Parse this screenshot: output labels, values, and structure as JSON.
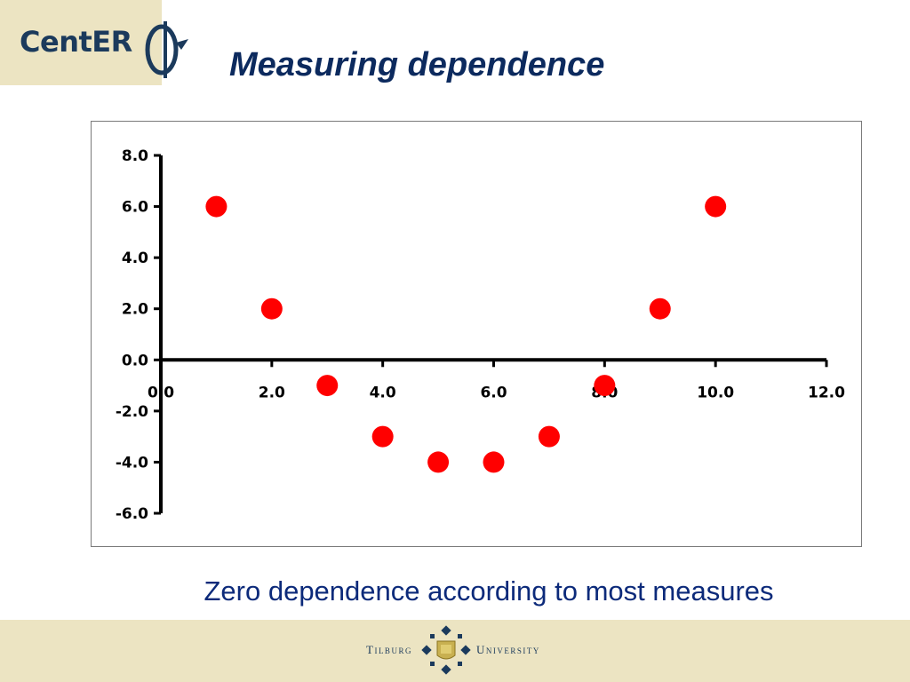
{
  "header": {
    "logo_text": "CentER",
    "title": "Measuring dependence"
  },
  "caption": "Zero dependence according to most measures",
  "footer": {
    "left": "Tilburg",
    "right": "University"
  },
  "colors": {
    "title": "#0c2a5e",
    "point": "#ff0000",
    "band": "#ece4c2"
  },
  "chart_data": {
    "type": "scatter",
    "title": "",
    "xlabel": "",
    "ylabel": "",
    "xlim": [
      0,
      12
    ],
    "ylim": [
      -6,
      8
    ],
    "x_ticks": [
      "0.0",
      "2.0",
      "4.0",
      "6.0",
      "8.0",
      "10.0",
      "12.0"
    ],
    "y_ticks": [
      "8.0",
      "6.0",
      "4.0",
      "2.0",
      "0.0",
      "-2.0",
      "-4.0",
      "-6.0"
    ],
    "grid": false,
    "series": [
      {
        "x": [
          1,
          2,
          3,
          4,
          5,
          6,
          7,
          8,
          9,
          10
        ],
        "y": [
          6,
          2,
          -1,
          -3,
          -4,
          -4,
          -3,
          -1,
          2,
          6
        ]
      }
    ]
  }
}
